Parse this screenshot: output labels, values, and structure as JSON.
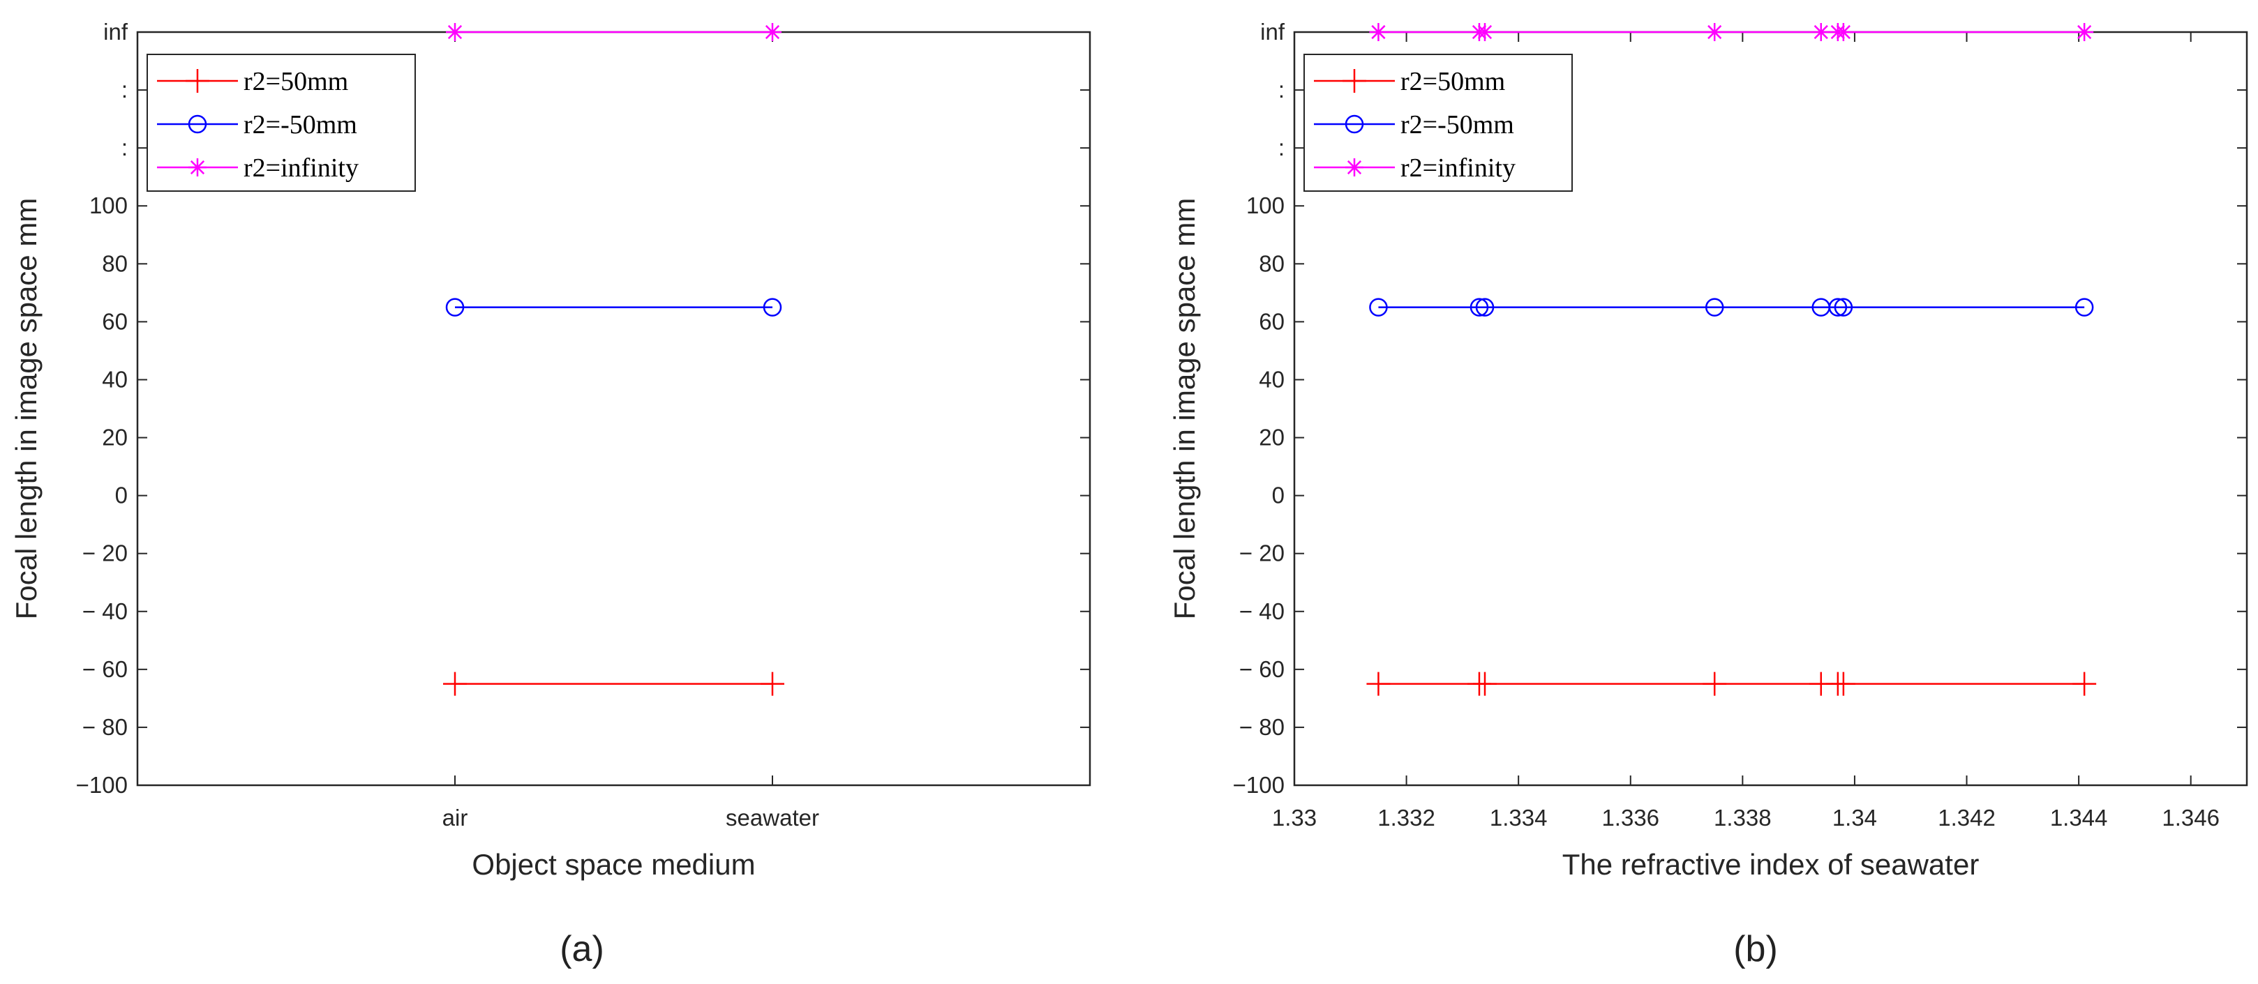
{
  "chart_data": [
    {
      "type": "line",
      "caption": "(a)",
      "xlabel": "Object space medium",
      "ylabel": "Focal length in image space mm",
      "x_kind": "categorical",
      "categories": [
        "air",
        "seawater"
      ],
      "xlim": [
        0,
        3
      ],
      "category_positions": [
        1,
        2
      ],
      "ylim": [
        -100,
        160
      ],
      "y_ticks": [
        -100,
        -80,
        -60,
        -40,
        -20,
        0,
        20,
        40,
        60,
        80,
        100
      ],
      "y_tick_labels": [
        "−100",
        "− 80",
        "− 60",
        "− 40",
        "− 20",
        "0",
        "20",
        "40",
        "60",
        "80",
        "100"
      ],
      "y_break_labels": [
        {
          "text": ":",
          "y": 120
        },
        {
          "text": ":",
          "y": 140
        },
        {
          "text": "inf",
          "y": 160
        }
      ],
      "legend_position": "top-left",
      "series": [
        {
          "name": "r2=50mm",
          "color": "#ff0000",
          "marker": "plus",
          "x": [
            1,
            2
          ],
          "y": [
            -65,
            -65
          ]
        },
        {
          "name": "r2=-50mm",
          "color": "#0000ff",
          "marker": "circle",
          "x": [
            1,
            2
          ],
          "y": [
            65,
            65
          ]
        },
        {
          "name": "r2=infinity",
          "color": "#ff00ff",
          "marker": "star",
          "x": [
            1,
            2
          ],
          "y": [
            160,
            160
          ],
          "y_display": "inf"
        }
      ]
    },
    {
      "type": "line",
      "caption": "(b)",
      "xlabel": "The refractive index of seawater",
      "ylabel": "Focal length in image space mm",
      "x_kind": "numeric",
      "xlim": [
        1.33,
        1.347
      ],
      "x_ticks": [
        1.33,
        1.332,
        1.334,
        1.336,
        1.338,
        1.34,
        1.342,
        1.344,
        1.346
      ],
      "x_tick_labels": [
        "1.33",
        "1.332",
        "1.334",
        "1.336",
        "1.338",
        "1.34",
        "1.342",
        "1.344",
        "1.346"
      ],
      "ylim": [
        -100,
        160
      ],
      "y_ticks": [
        -100,
        -80,
        -60,
        -40,
        -20,
        0,
        20,
        40,
        60,
        80,
        100
      ],
      "y_tick_labels": [
        "−100",
        "− 80",
        "− 60",
        "− 40",
        "− 20",
        "0",
        "20",
        "40",
        "60",
        "80",
        "100"
      ],
      "y_break_labels": [
        {
          "text": ":",
          "y": 120
        },
        {
          "text": ":",
          "y": 140
        },
        {
          "text": "inf",
          "y": 160
        }
      ],
      "legend_position": "top-left",
      "series": [
        {
          "name": "r2=50mm",
          "color": "#ff0000",
          "marker": "plus",
          "x": [
            1.3315,
            1.3333,
            1.3334,
            1.3375,
            1.3394,
            1.3397,
            1.3398,
            1.3441
          ],
          "y": [
            -65,
            -65,
            -65,
            -65,
            -65,
            -65,
            -65,
            -65
          ]
        },
        {
          "name": "r2=-50mm",
          "color": "#0000ff",
          "marker": "circle",
          "x": [
            1.3315,
            1.3333,
            1.3334,
            1.3375,
            1.3394,
            1.3397,
            1.3398,
            1.3441
          ],
          "y": [
            65,
            65,
            65,
            65,
            65,
            65,
            65,
            65
          ]
        },
        {
          "name": "r2=infinity",
          "color": "#ff00ff",
          "marker": "star",
          "x": [
            1.3315,
            1.3333,
            1.3334,
            1.3375,
            1.3394,
            1.3397,
            1.3398,
            1.3441
          ],
          "y": [
            160,
            160,
            160,
            160,
            160,
            160,
            160,
            160
          ],
          "y_display": "inf"
        }
      ]
    }
  ]
}
